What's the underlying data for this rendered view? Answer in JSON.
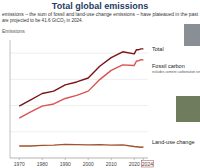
{
  "chart_data": {
    "type": "line",
    "title": "Total global emissions",
    "subtitle": [
      "emissions – the sum of fossil and land-use change emissions – have plateaued in the past",
      "are projected to be 41.6 GtCO₂ in 2024."
    ],
    "y_label": "Emissions",
    "x": [
      1970,
      1975,
      1980,
      1985,
      1990,
      1995,
      2000,
      2005,
      2010,
      2015,
      2020,
      2021,
      2022,
      2023,
      2024
    ],
    "series": [
      {
        "name": "Total",
        "color": "#7a1414",
        "values": [
          19.8,
          22.2,
          24.6,
          25.5,
          27.9,
          29.0,
          30.5,
          35.0,
          38.3,
          40.5,
          39.7,
          41.3,
          41.3,
          41.6,
          41.6
        ]
      },
      {
        "name": "Fossil carbon",
        "color": "#d9534f",
        "values": [
          15.2,
          17.6,
          19.8,
          20.6,
          22.7,
          23.9,
          25.5,
          29.9,
          33.4,
          35.5,
          35.3,
          37.0,
          37.1,
          37.5,
          37.4
        ]
      },
      {
        "name": "Land-use change",
        "color": "#a0522d",
        "values": [
          4.6,
          4.6,
          4.8,
          4.9,
          5.2,
          5.1,
          5.0,
          5.1,
          4.9,
          5.0,
          4.4,
          4.3,
          4.2,
          4.1,
          4.2
        ]
      }
    ],
    "annotations": [
      "includes cement carbonation sink"
    ],
    "xlim": [
      1966,
      2026
    ],
    "ylim": [
      0,
      45
    ],
    "xticks": [
      1970,
      1980,
      1990,
      2000,
      2010,
      2020,
      2024
    ],
    "yticks": [
      0,
      10,
      20,
      30,
      40
    ],
    "grid": true,
    "tick_labels": "x"
  }
}
